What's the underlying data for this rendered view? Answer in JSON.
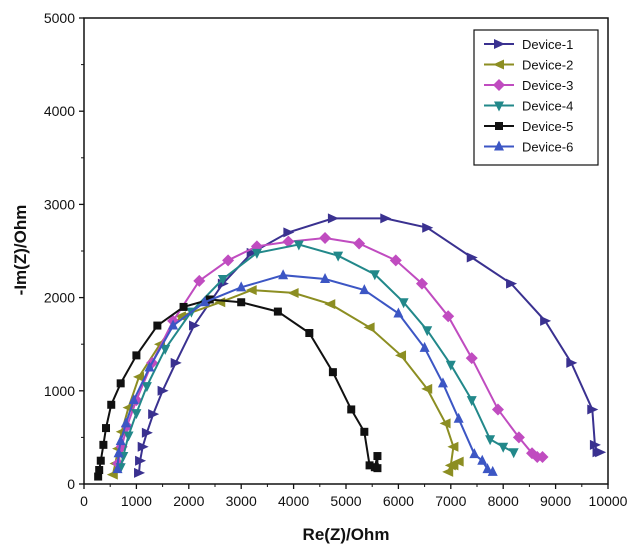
{
  "chart_data": {
    "type": "scatter",
    "title": "",
    "xlabel": "Re(Z)/Ohm",
    "ylabel": "-Im(Z)/Ohm",
    "xlim": [
      0,
      10000
    ],
    "ylim": [
      0,
      5000
    ],
    "x_ticks": [
      0,
      1000,
      2000,
      3000,
      4000,
      5000,
      6000,
      7000,
      8000,
      9000,
      10000
    ],
    "y_ticks": [
      0,
      1000,
      2000,
      3000,
      4000,
      5000
    ],
    "grid": false,
    "legend_position": "top-right",
    "series": [
      {
        "name": "Device-1",
        "color": "#3a3190",
        "marker": "triangle-right",
        "points": [
          [
            1050,
            120
          ],
          [
            1070,
            250
          ],
          [
            1120,
            400
          ],
          [
            1200,
            550
          ],
          [
            1320,
            750
          ],
          [
            1500,
            1000
          ],
          [
            1750,
            1300
          ],
          [
            2100,
            1700
          ],
          [
            2650,
            2150
          ],
          [
            3200,
            2480
          ],
          [
            3900,
            2700
          ],
          [
            4750,
            2850
          ],
          [
            5750,
            2850
          ],
          [
            6550,
            2750
          ],
          [
            7400,
            2430
          ],
          [
            8150,
            2150
          ],
          [
            8800,
            1750
          ],
          [
            9300,
            1300
          ],
          [
            9700,
            800
          ],
          [
            9750,
            420
          ],
          [
            9800,
            340
          ],
          [
            9850,
            340
          ]
        ]
      },
      {
        "name": "Device-2",
        "color": "#8c8e22",
        "marker": "triangle-left",
        "points": [
          [
            550,
            100
          ],
          [
            600,
            220
          ],
          [
            650,
            380
          ],
          [
            720,
            560
          ],
          [
            850,
            820
          ],
          [
            1050,
            1150
          ],
          [
            1450,
            1500
          ],
          [
            1850,
            1800
          ],
          [
            2600,
            1950
          ],
          [
            3200,
            2080
          ],
          [
            4000,
            2050
          ],
          [
            4700,
            1930
          ],
          [
            5450,
            1680
          ],
          [
            6050,
            1380
          ],
          [
            6550,
            1020
          ],
          [
            6900,
            650
          ],
          [
            7050,
            400
          ],
          [
            7000,
            200
          ],
          [
            6950,
            130
          ],
          [
            7050,
            200
          ],
          [
            7150,
            240
          ]
        ]
      },
      {
        "name": "Device-3",
        "color": "#c04cc0",
        "marker": "diamond",
        "points": [
          [
            650,
            220
          ],
          [
            720,
            400
          ],
          [
            820,
            620
          ],
          [
            1000,
            900
          ],
          [
            1300,
            1300
          ],
          [
            1700,
            1750
          ],
          [
            2200,
            2180
          ],
          [
            2750,
            2400
          ],
          [
            3300,
            2550
          ],
          [
            3900,
            2600
          ],
          [
            4600,
            2640
          ],
          [
            5250,
            2580
          ],
          [
            5950,
            2400
          ],
          [
            6450,
            2150
          ],
          [
            6950,
            1800
          ],
          [
            7400,
            1350
          ],
          [
            7900,
            800
          ],
          [
            8300,
            500
          ],
          [
            8550,
            330
          ],
          [
            8650,
            290
          ],
          [
            8750,
            290
          ]
        ]
      },
      {
        "name": "Device-4",
        "color": "#22888a",
        "marker": "triangle-down",
        "points": [
          [
            700,
            180
          ],
          [
            750,
            300
          ],
          [
            850,
            520
          ],
          [
            1000,
            760
          ],
          [
            1200,
            1050
          ],
          [
            1550,
            1450
          ],
          [
            2050,
            1850
          ],
          [
            2650,
            2200
          ],
          [
            3300,
            2480
          ],
          [
            4100,
            2570
          ],
          [
            4850,
            2450
          ],
          [
            5550,
            2250
          ],
          [
            6100,
            1950
          ],
          [
            6550,
            1650
          ],
          [
            7000,
            1280
          ],
          [
            7400,
            900
          ],
          [
            7750,
            480
          ],
          [
            8000,
            400
          ],
          [
            8200,
            340
          ]
        ]
      },
      {
        "name": "Device-5",
        "color": "#111111",
        "marker": "square",
        "points": [
          [
            270,
            80
          ],
          [
            290,
            150
          ],
          [
            320,
            250
          ],
          [
            370,
            420
          ],
          [
            420,
            600
          ],
          [
            520,
            850
          ],
          [
            700,
            1080
          ],
          [
            1000,
            1380
          ],
          [
            1400,
            1700
          ],
          [
            1900,
            1900
          ],
          [
            2400,
            1980
          ],
          [
            3000,
            1950
          ],
          [
            3700,
            1850
          ],
          [
            4300,
            1620
          ],
          [
            4750,
            1200
          ],
          [
            5100,
            800
          ],
          [
            5350,
            560
          ],
          [
            5450,
            200
          ],
          [
            5550,
            180
          ],
          [
            5600,
            300
          ],
          [
            5600,
            170
          ]
        ]
      },
      {
        "name": "Device-6",
        "color": "#3c56c4",
        "marker": "triangle-up",
        "points": [
          [
            640,
            160
          ],
          [
            660,
            330
          ],
          [
            700,
            460
          ],
          [
            800,
            650
          ],
          [
            950,
            900
          ],
          [
            1250,
            1250
          ],
          [
            1700,
            1700
          ],
          [
            2300,
            1950
          ],
          [
            3000,
            2110
          ],
          [
            3800,
            2240
          ],
          [
            4600,
            2200
          ],
          [
            5350,
            2080
          ],
          [
            6000,
            1830
          ],
          [
            6500,
            1460
          ],
          [
            6850,
            1080
          ],
          [
            7150,
            700
          ],
          [
            7450,
            320
          ],
          [
            7600,
            250
          ],
          [
            7700,
            160
          ],
          [
            7800,
            130
          ]
        ]
      }
    ]
  }
}
